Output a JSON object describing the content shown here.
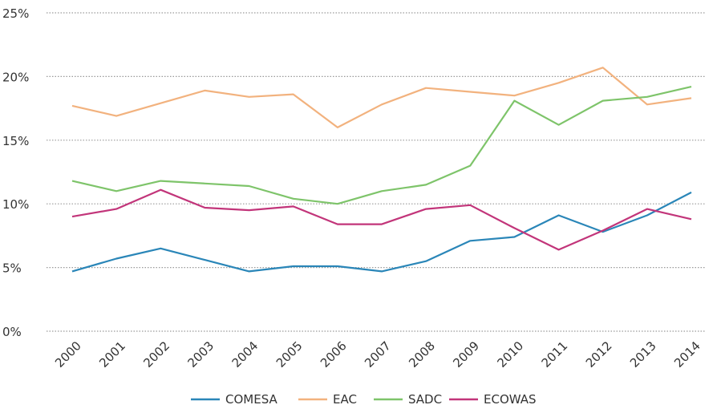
{
  "chart_data": {
    "type": "line",
    "x": [
      "2000",
      "2001",
      "2002",
      "2003",
      "2004",
      "2005",
      "2006",
      "2007",
      "2008",
      "2009",
      "2010",
      "2011",
      "2012",
      "2013",
      "2014"
    ],
    "y_ticks": [
      "0%",
      "5%",
      "10%",
      "15%",
      "20%",
      "25%"
    ],
    "ylim": [
      0,
      25
    ],
    "grid": "horizontal dotted",
    "legend_position": "bottom",
    "series": [
      {
        "name": "COMESA",
        "color": "#2a86b8",
        "values": [
          4.7,
          5.7,
          6.5,
          5.6,
          4.7,
          5.1,
          5.1,
          4.7,
          5.5,
          7.1,
          7.4,
          9.1,
          7.8,
          9.1,
          10.9
        ]
      },
      {
        "name": "EAC",
        "color": "#f2b27e",
        "values": [
          17.7,
          16.9,
          17.9,
          18.9,
          18.4,
          18.6,
          16.0,
          17.8,
          19.1,
          18.8,
          18.5,
          19.5,
          20.7,
          17.8,
          18.3
        ]
      },
      {
        "name": "SADC",
        "color": "#7ec46a",
        "values": [
          11.8,
          11.0,
          11.8,
          11.6,
          11.4,
          10.4,
          10.0,
          11.0,
          11.5,
          13.0,
          18.1,
          16.2,
          18.1,
          18.4,
          19.2
        ]
      },
      {
        "name": "ECOWAS",
        "color": "#c2357a",
        "values": [
          9.0,
          9.6,
          11.1,
          9.7,
          9.5,
          9.8,
          8.4,
          8.4,
          9.6,
          9.9,
          8.1,
          6.4,
          7.9,
          9.6,
          8.8
        ]
      }
    ]
  }
}
